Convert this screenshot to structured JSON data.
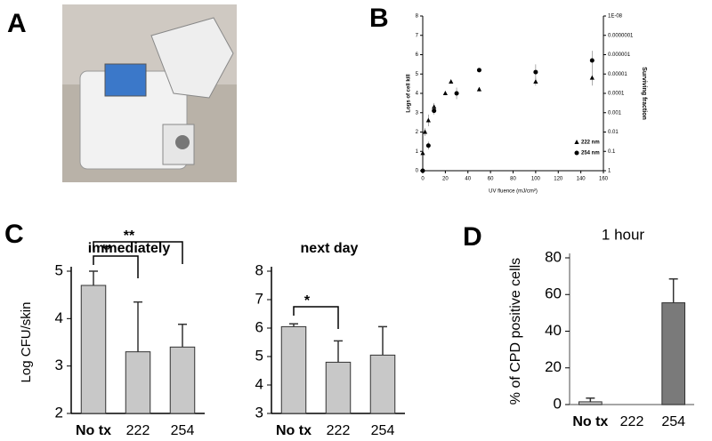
{
  "panel_labels": [
    "A",
    "B",
    "C",
    "D"
  ],
  "chart_data": [
    {
      "type": "scatter",
      "x_label": "UV fluence (mJ/cm²)",
      "y_label": "Logs of cell kill",
      "y2_label": "Surviving fraction",
      "xlim": [
        0,
        160
      ],
      "xticks": [
        0,
        20,
        40,
        60,
        80,
        100,
        120,
        140,
        160
      ],
      "ylim": [
        0,
        8
      ],
      "yticks": [
        0,
        1,
        2,
        3,
        4,
        5,
        6,
        7,
        8
      ],
      "y2lim": [
        1,
        1e-08
      ],
      "y2_log": true,
      "y2ticks": [
        1,
        0.1,
        0.01,
        0.001,
        0.0001,
        1e-05,
        1e-06,
        {
          "value": 1e-07,
          "label": "0.0000001"
        },
        {
          "value": 1e-08,
          "label": "1E-08"
        }
      ],
      "series": [
        {
          "name": "222 nm",
          "marker": "triangle",
          "color": "#000",
          "x": [
            0,
            2,
            5,
            10,
            20,
            25,
            50,
            100,
            150
          ],
          "values": [
            0.9,
            2.0,
            2.6,
            3.3,
            4.0,
            4.6,
            4.2,
            4.6,
            4.8
          ],
          "errors": [
            0,
            0.2,
            0.3,
            0.2,
            0.1,
            0.1,
            0.1,
            0.2,
            0.4
          ]
        },
        {
          "name": "254 nm",
          "marker": "circle",
          "color": "#000",
          "x": [
            0,
            5,
            10,
            30,
            50,
            100,
            150
          ],
          "values": [
            0,
            1.3,
            3.1,
            4.0,
            5.2,
            5.1,
            5.7
          ],
          "errors": [
            0,
            0.2,
            0.2,
            0.3,
            0.1,
            0.4,
            0.5
          ]
        }
      ]
    },
    {
      "type": "bar",
      "title": "immediately",
      "y_label": "Log CFU/skin",
      "categories": [
        "No tx",
        "222",
        "254"
      ],
      "values": [
        4.7,
        3.3,
        3.4
      ],
      "errors": [
        0.3,
        1.05,
        0.48
      ],
      "colors": [
        "#c8c8c8",
        "#c8c8c8",
        "#c8c8c8"
      ],
      "ylim": [
        2,
        5
      ],
      "yticks": [
        2,
        3,
        4,
        5
      ],
      "annotations": [
        "**",
        "**"
      ]
    },
    {
      "type": "bar",
      "title": "next day",
      "categories": [
        "No tx",
        "222",
        "254"
      ],
      "values": [
        6.05,
        4.8,
        5.05
      ],
      "errors": [
        0.1,
        0.75,
        1.0
      ],
      "colors": [
        "#c8c8c8",
        "#c8c8c8",
        "#c8c8c8"
      ],
      "ylim": [
        3,
        8
      ],
      "yticks": [
        3,
        4,
        5,
        6,
        7,
        8
      ],
      "annotations": [
        "*"
      ]
    },
    {
      "type": "bar",
      "title": "1 hour",
      "y_label": "% of CPD positive cells",
      "categories": [
        "No tx",
        "222",
        "254"
      ],
      "values": [
        1.5,
        0,
        55.5
      ],
      "errors": [
        2,
        0,
        13
      ],
      "colors": [
        "#c8c8c8",
        "#c8c8c8",
        "#7a7a7a"
      ],
      "ylim": [
        0,
        80
      ],
      "yticks": [
        0,
        20,
        40,
        60,
        80
      ]
    }
  ]
}
